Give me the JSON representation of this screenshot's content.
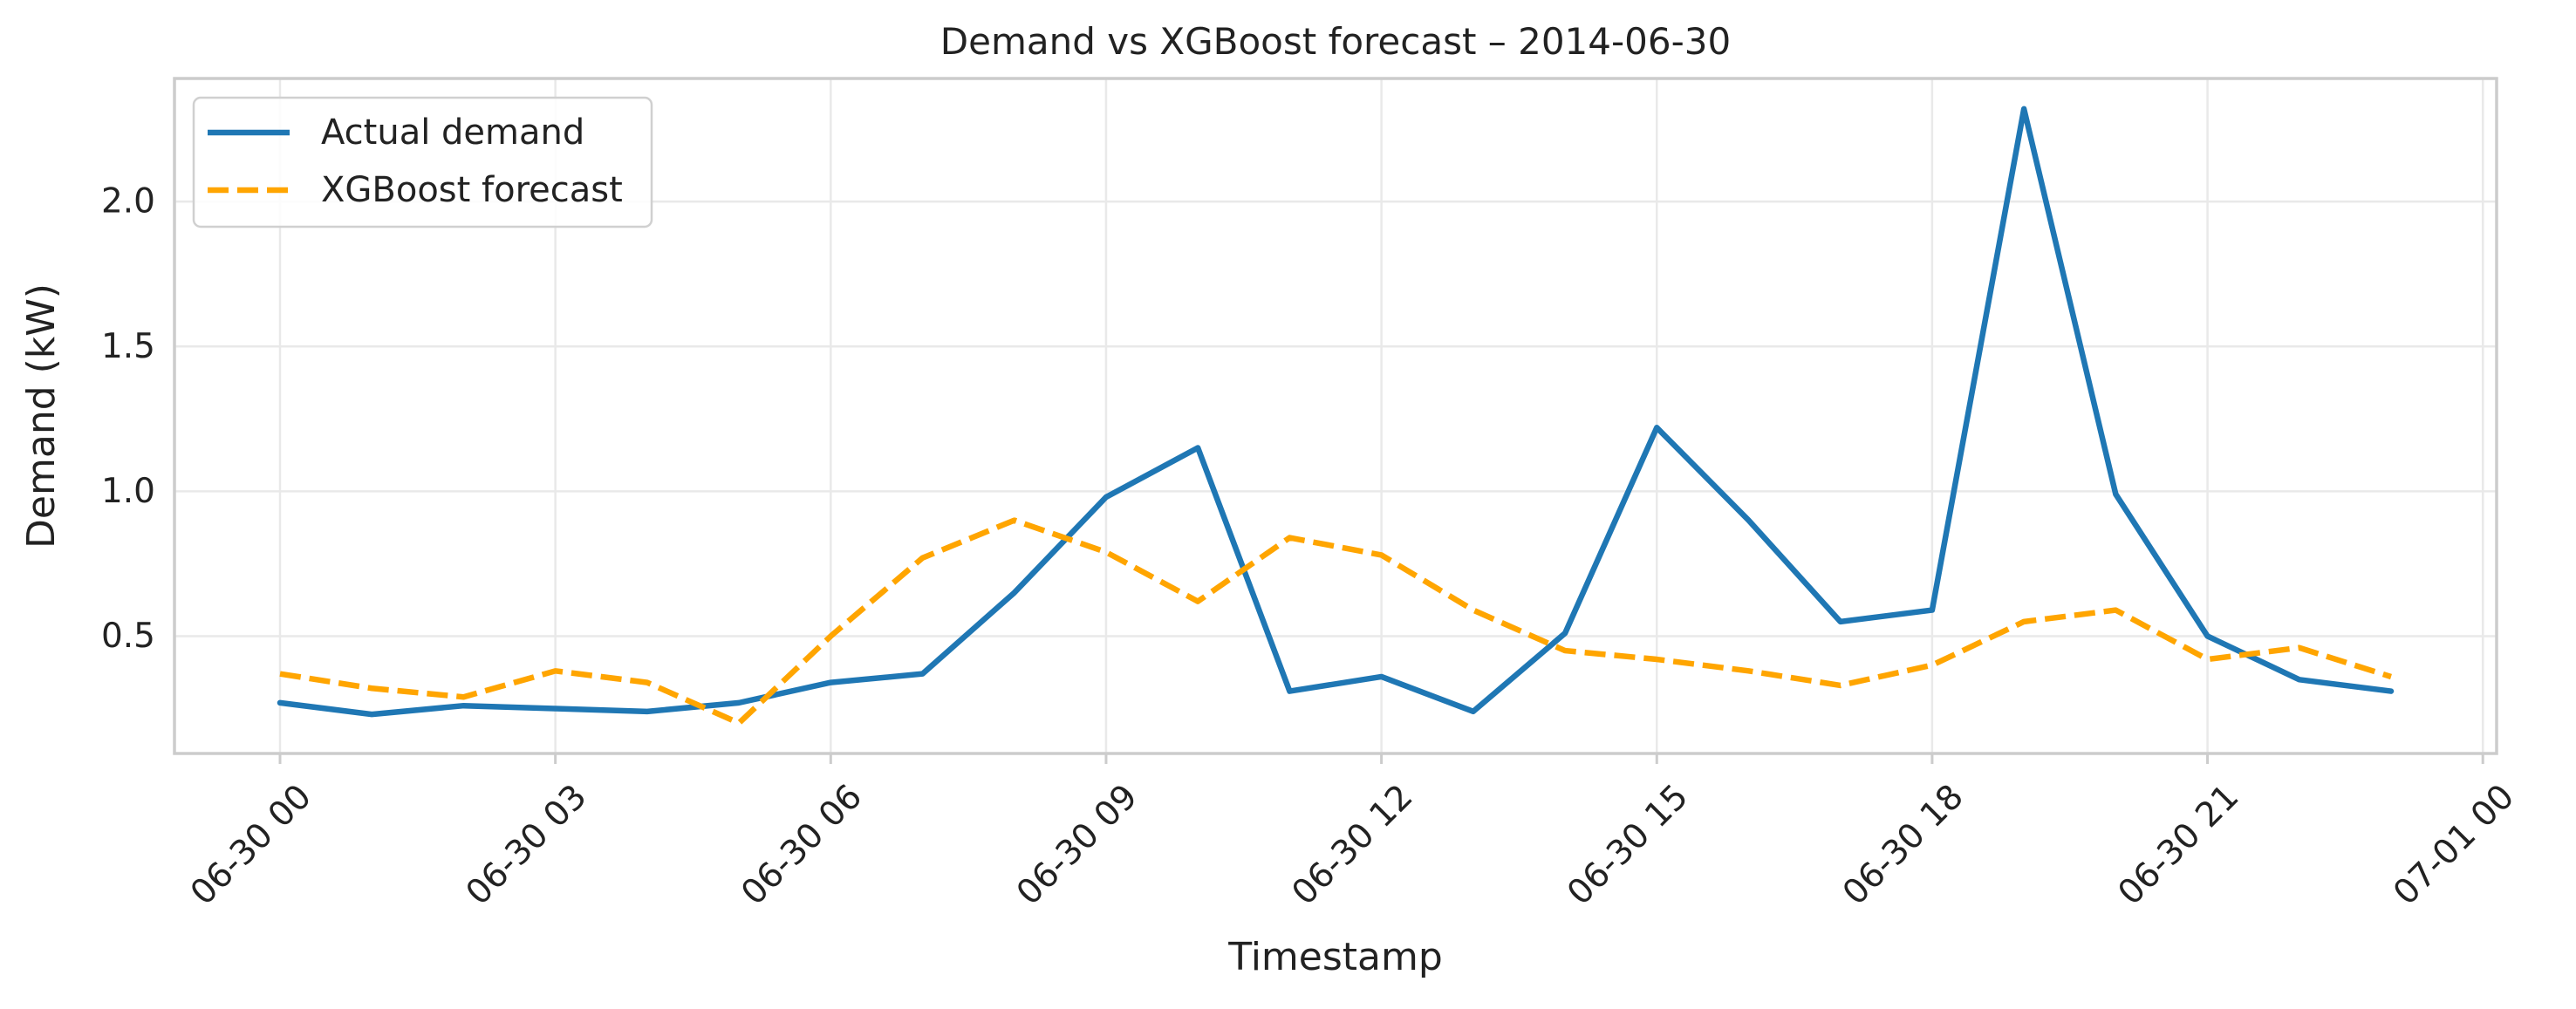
{
  "chart_data": {
    "type": "line",
    "title": "Demand vs XGBoost forecast – 2014-06-30",
    "xlabel": "Timestamp",
    "ylabel": "Demand (kW)",
    "x": [
      "2014-06-30 00:00",
      "2014-06-30 01:00",
      "2014-06-30 02:00",
      "2014-06-30 03:00",
      "2014-06-30 04:00",
      "2014-06-30 05:00",
      "2014-06-30 06:00",
      "2014-06-30 07:00",
      "2014-06-30 08:00",
      "2014-06-30 09:00",
      "2014-06-30 10:00",
      "2014-06-30 11:00",
      "2014-06-30 12:00",
      "2014-06-30 13:00",
      "2014-06-30 14:00",
      "2014-06-30 15:00",
      "2014-06-30 16:00",
      "2014-06-30 17:00",
      "2014-06-30 18:00",
      "2014-06-30 19:00",
      "2014-06-30 20:00",
      "2014-06-30 21:00",
      "2014-06-30 22:00",
      "2014-06-30 23:00"
    ],
    "series": [
      {
        "name": "Actual demand",
        "color": "#1f77b4",
        "style": "solid",
        "values": [
          0.27,
          0.23,
          0.26,
          0.25,
          0.24,
          0.27,
          0.34,
          0.37,
          0.65,
          0.98,
          1.15,
          0.31,
          0.36,
          0.24,
          0.51,
          1.22,
          0.9,
          0.55,
          0.59,
          2.32,
          0.99,
          0.5,
          0.35,
          0.31
        ]
      },
      {
        "name": "XGBoost forecast",
        "color": "#ffa500",
        "style": "dashed",
        "values": [
          0.37,
          0.32,
          0.29,
          0.38,
          0.34,
          0.2,
          0.5,
          0.77,
          0.9,
          0.79,
          0.62,
          0.84,
          0.78,
          0.59,
          0.45,
          0.42,
          0.38,
          0.33,
          0.4,
          0.55,
          0.59,
          0.42,
          0.46,
          0.36
        ]
      }
    ],
    "xticks": [
      {
        "value": "2014-06-30 00:00",
        "label": "06-30 00"
      },
      {
        "value": "2014-06-30 03:00",
        "label": "06-30 03"
      },
      {
        "value": "2014-06-30 06:00",
        "label": "06-30 06"
      },
      {
        "value": "2014-06-30 09:00",
        "label": "06-30 09"
      },
      {
        "value": "2014-06-30 12:00",
        "label": "06-30 12"
      },
      {
        "value": "2014-06-30 15:00",
        "label": "06-30 15"
      },
      {
        "value": "2014-06-30 18:00",
        "label": "06-30 18"
      },
      {
        "value": "2014-06-30 21:00",
        "label": "06-30 21"
      },
      {
        "value": "2014-07-01 00:00",
        "label": "07-01 00"
      }
    ],
    "yticks": [
      0.5,
      1.0,
      1.5,
      2.0
    ],
    "xlim": [
      "2014-06-29 22:51",
      "2014-07-01 00:09"
    ],
    "ylim": [
      0.095,
      2.425
    ],
    "grid": true,
    "legend": "upper-left"
  }
}
